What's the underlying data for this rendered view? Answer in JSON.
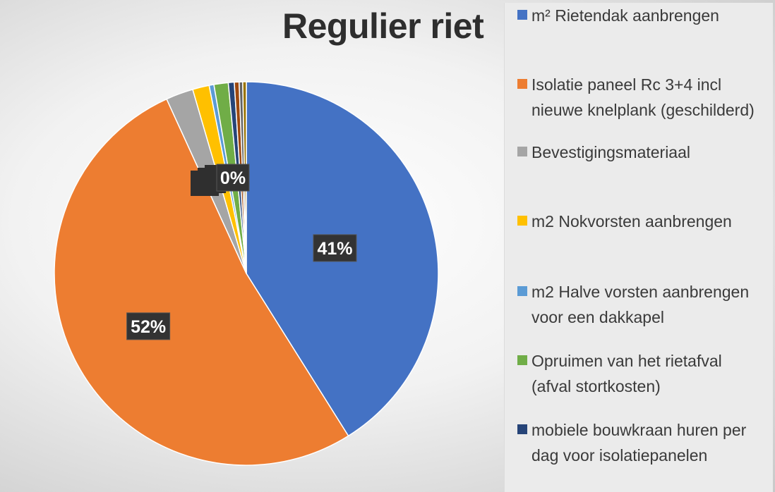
{
  "chart_data": {
    "type": "pie",
    "title": "Regulier riet",
    "legend_position": "right",
    "slices": [
      {
        "name": "m² Rietendak aanbrengen",
        "value": 41,
        "color": "#4472C4",
        "label": "41%"
      },
      {
        "name": "Isolatie paneel Rc 3+4 incl nieuwe knelplank (geschilderd)",
        "value": 52,
        "color": "#ED7D31",
        "label": "52%"
      },
      {
        "name": "Bevestigingsmateriaal",
        "value": 2.3,
        "color": "#A5A5A5",
        "label": ""
      },
      {
        "name": "m2 Nokvorsten aanbrengen",
        "value": 1.4,
        "color": "#FFC000",
        "label": ""
      },
      {
        "name": "m2 Halve vorsten aanbrengen voor een dakkapel",
        "value": 0.4,
        "color": "#5B9BD5",
        "label": ""
      },
      {
        "name": "Opruimen van het rietafval (afval stortkosten)",
        "value": 1.2,
        "color": "#70AD47",
        "label": ""
      },
      {
        "name": "mobiele bouwkraan huren per dag voor isolatiepanelen",
        "value": 0.5,
        "color": "#264478",
        "label": ""
      },
      {
        "name": "",
        "value": 0.4,
        "color": "#9E480E",
        "label": ""
      },
      {
        "name": "",
        "value": 0.3,
        "color": "#636363",
        "label": ""
      },
      {
        "name": "",
        "value": 0.3,
        "color": "#997300",
        "label": "0%"
      }
    ]
  }
}
